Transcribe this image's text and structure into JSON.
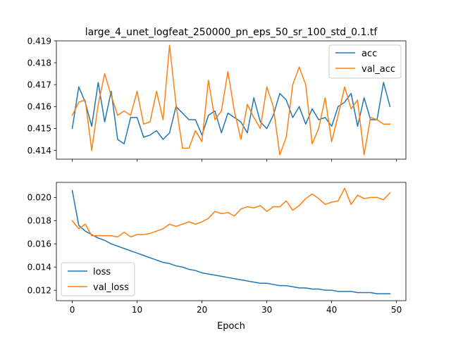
{
  "chart_data": [
    {
      "type": "line",
      "title": "large_4_unet_logfeat_250000_pn_eps_50_sr_100_std_0.1.tf",
      "xlabel": "",
      "ylabel": "",
      "xlim": [
        -2.45,
        51.45
      ],
      "ylim": [
        0.4136,
        0.419
      ],
      "xticks": [
        0,
        10,
        20,
        30,
        40,
        50
      ],
      "xtick_labels": [
        "",
        "",
        "",
        "",
        "",
        ""
      ],
      "yticks": [
        0.414,
        0.415,
        0.416,
        0.417,
        0.418,
        0.419
      ],
      "ytick_labels": [
        "0.414",
        "0.415",
        "0.416",
        "0.417",
        "0.418",
        "0.419"
      ],
      "legend_position": "top-right",
      "grid": false,
      "x": [
        0,
        1,
        2,
        3,
        4,
        5,
        6,
        7,
        8,
        9,
        10,
        11,
        12,
        13,
        14,
        15,
        16,
        17,
        18,
        19,
        20,
        21,
        22,
        23,
        24,
        25,
        26,
        27,
        28,
        29,
        30,
        31,
        32,
        33,
        34,
        35,
        36,
        37,
        38,
        39,
        40,
        41,
        42,
        43,
        44,
        45,
        46,
        47,
        48,
        49
      ],
      "series": [
        {
          "name": "acc",
          "color": "#1f77b4",
          "values": [
            0.415,
            0.4169,
            0.4162,
            0.4151,
            0.4171,
            0.4153,
            0.4167,
            0.4145,
            0.4143,
            0.4155,
            0.4155,
            0.4146,
            0.4147,
            0.4149,
            0.4145,
            0.4148,
            0.416,
            0.4157,
            0.4154,
            0.4154,
            0.4147,
            0.4156,
            0.4158,
            0.4148,
            0.4157,
            0.4155,
            0.4153,
            0.4148,
            0.4164,
            0.4153,
            0.415,
            0.4156,
            0.4166,
            0.4163,
            0.4155,
            0.416,
            0.4152,
            0.4159,
            0.4154,
            0.4155,
            0.4151,
            0.416,
            0.4162,
            0.4166,
            0.4151,
            0.4164,
            0.4154,
            0.4154,
            0.4171,
            0.416
          ]
        },
        {
          "name": "val_acc",
          "color": "#ff7f0e",
          "values": [
            0.4156,
            0.4162,
            0.4163,
            0.414,
            0.4161,
            0.4175,
            0.4165,
            0.4156,
            0.4158,
            0.4156,
            0.4167,
            0.4152,
            0.4153,
            0.4167,
            0.4154,
            0.4188,
            0.4161,
            0.4141,
            0.4141,
            0.4149,
            0.4144,
            0.4172,
            0.4154,
            0.4158,
            0.4176,
            0.4158,
            0.4145,
            0.4161,
            0.4155,
            0.415,
            0.4169,
            0.416,
            0.4138,
            0.4146,
            0.417,
            0.4178,
            0.417,
            0.4143,
            0.415,
            0.4164,
            0.4144,
            0.4156,
            0.4169,
            0.4159,
            0.4163,
            0.4138,
            0.4155,
            0.4154,
            0.4152,
            0.4152
          ]
        }
      ]
    },
    {
      "type": "line",
      "title": "",
      "xlabel": "Epoch",
      "ylabel": "",
      "xlim": [
        -2.45,
        51.45
      ],
      "ylim": [
        0.0111,
        0.0213
      ],
      "xticks": [
        0,
        10,
        20,
        30,
        40,
        50
      ],
      "xtick_labels": [
        "0",
        "10",
        "20",
        "30",
        "40",
        "50"
      ],
      "yticks": [
        0.012,
        0.014,
        0.016,
        0.018,
        0.02
      ],
      "ytick_labels": [
        "0.012",
        "0.014",
        "0.016",
        "0.018",
        "0.020"
      ],
      "legend_position": "bottom-left",
      "grid": false,
      "x": [
        0,
        1,
        2,
        3,
        4,
        5,
        6,
        7,
        8,
        9,
        10,
        11,
        12,
        13,
        14,
        15,
        16,
        17,
        18,
        19,
        20,
        21,
        22,
        23,
        24,
        25,
        26,
        27,
        28,
        29,
        30,
        31,
        32,
        33,
        34,
        35,
        36,
        37,
        38,
        39,
        40,
        41,
        42,
        43,
        44,
        45,
        46,
        47,
        48,
        49
      ],
      "series": [
        {
          "name": "loss",
          "color": "#1f77b4",
          "values": [
            0.0206,
            0.0176,
            0.0171,
            0.0168,
            0.0165,
            0.0163,
            0.016,
            0.0158,
            0.0156,
            0.0154,
            0.0152,
            0.015,
            0.0148,
            0.0146,
            0.0144,
            0.0143,
            0.0141,
            0.014,
            0.0138,
            0.0137,
            0.0135,
            0.0134,
            0.0133,
            0.0132,
            0.0131,
            0.013,
            0.0129,
            0.0128,
            0.0127,
            0.0126,
            0.0126,
            0.0125,
            0.0124,
            0.0124,
            0.0123,
            0.0122,
            0.0122,
            0.0121,
            0.0121,
            0.012,
            0.012,
            0.0119,
            0.0119,
            0.0119,
            0.0118,
            0.0118,
            0.0118,
            0.0117,
            0.0117,
            0.0117
          ]
        },
        {
          "name": "val_loss",
          "color": "#ff7f0e",
          "values": [
            0.018,
            0.0173,
            0.0177,
            0.0167,
            0.0167,
            0.0167,
            0.0167,
            0.0166,
            0.017,
            0.0166,
            0.0168,
            0.0168,
            0.0169,
            0.0171,
            0.0173,
            0.0177,
            0.0175,
            0.0177,
            0.0179,
            0.0177,
            0.0179,
            0.0182,
            0.0188,
            0.0186,
            0.0187,
            0.0184,
            0.019,
            0.0192,
            0.0191,
            0.0193,
            0.0188,
            0.0192,
            0.0192,
            0.0197,
            0.0189,
            0.0193,
            0.0199,
            0.0203,
            0.0199,
            0.0194,
            0.0196,
            0.0197,
            0.0208,
            0.0194,
            0.0202,
            0.0199,
            0.02,
            0.02,
            0.0198,
            0.0204
          ]
        }
      ]
    }
  ]
}
